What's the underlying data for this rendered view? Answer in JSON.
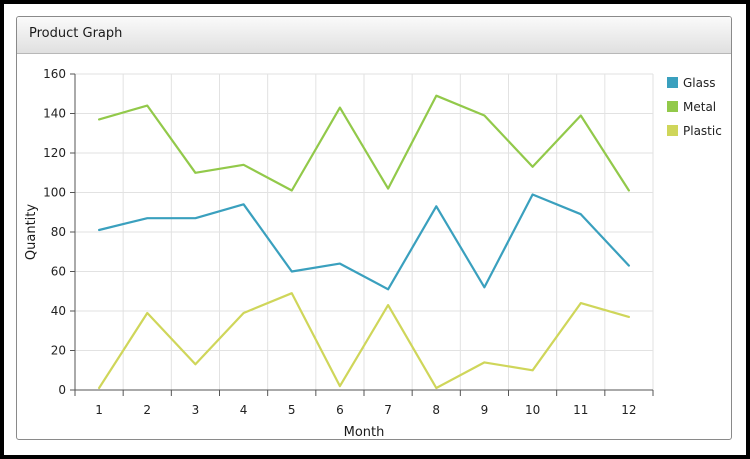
{
  "panel": {
    "title": "Product Graph"
  },
  "chart_data": {
    "type": "line",
    "title": "Product Graph",
    "xlabel": "Month",
    "ylabel": "Quantity",
    "x": [
      1,
      2,
      3,
      4,
      5,
      6,
      7,
      8,
      9,
      10,
      11,
      12
    ],
    "xlim": [
      0.5,
      12.5
    ],
    "ylim": [
      0,
      160
    ],
    "yticks": [
      0,
      20,
      40,
      60,
      80,
      100,
      120,
      140,
      160
    ],
    "grid": true,
    "legend_position": "top-right",
    "series": [
      {
        "name": "Glass",
        "color": "#3aa0be",
        "values": [
          81,
          87,
          87,
          94,
          60,
          64,
          51,
          93,
          52,
          99,
          89,
          63
        ]
      },
      {
        "name": "Metal",
        "color": "#92c94a",
        "values": [
          137,
          144,
          110,
          114,
          101,
          143,
          102,
          149,
          139,
          113,
          139,
          101
        ]
      },
      {
        "name": "Plastic",
        "color": "#cfd65a",
        "values": [
          1,
          39,
          13,
          39,
          49,
          2,
          43,
          1,
          14,
          10,
          44,
          37
        ]
      }
    ]
  }
}
